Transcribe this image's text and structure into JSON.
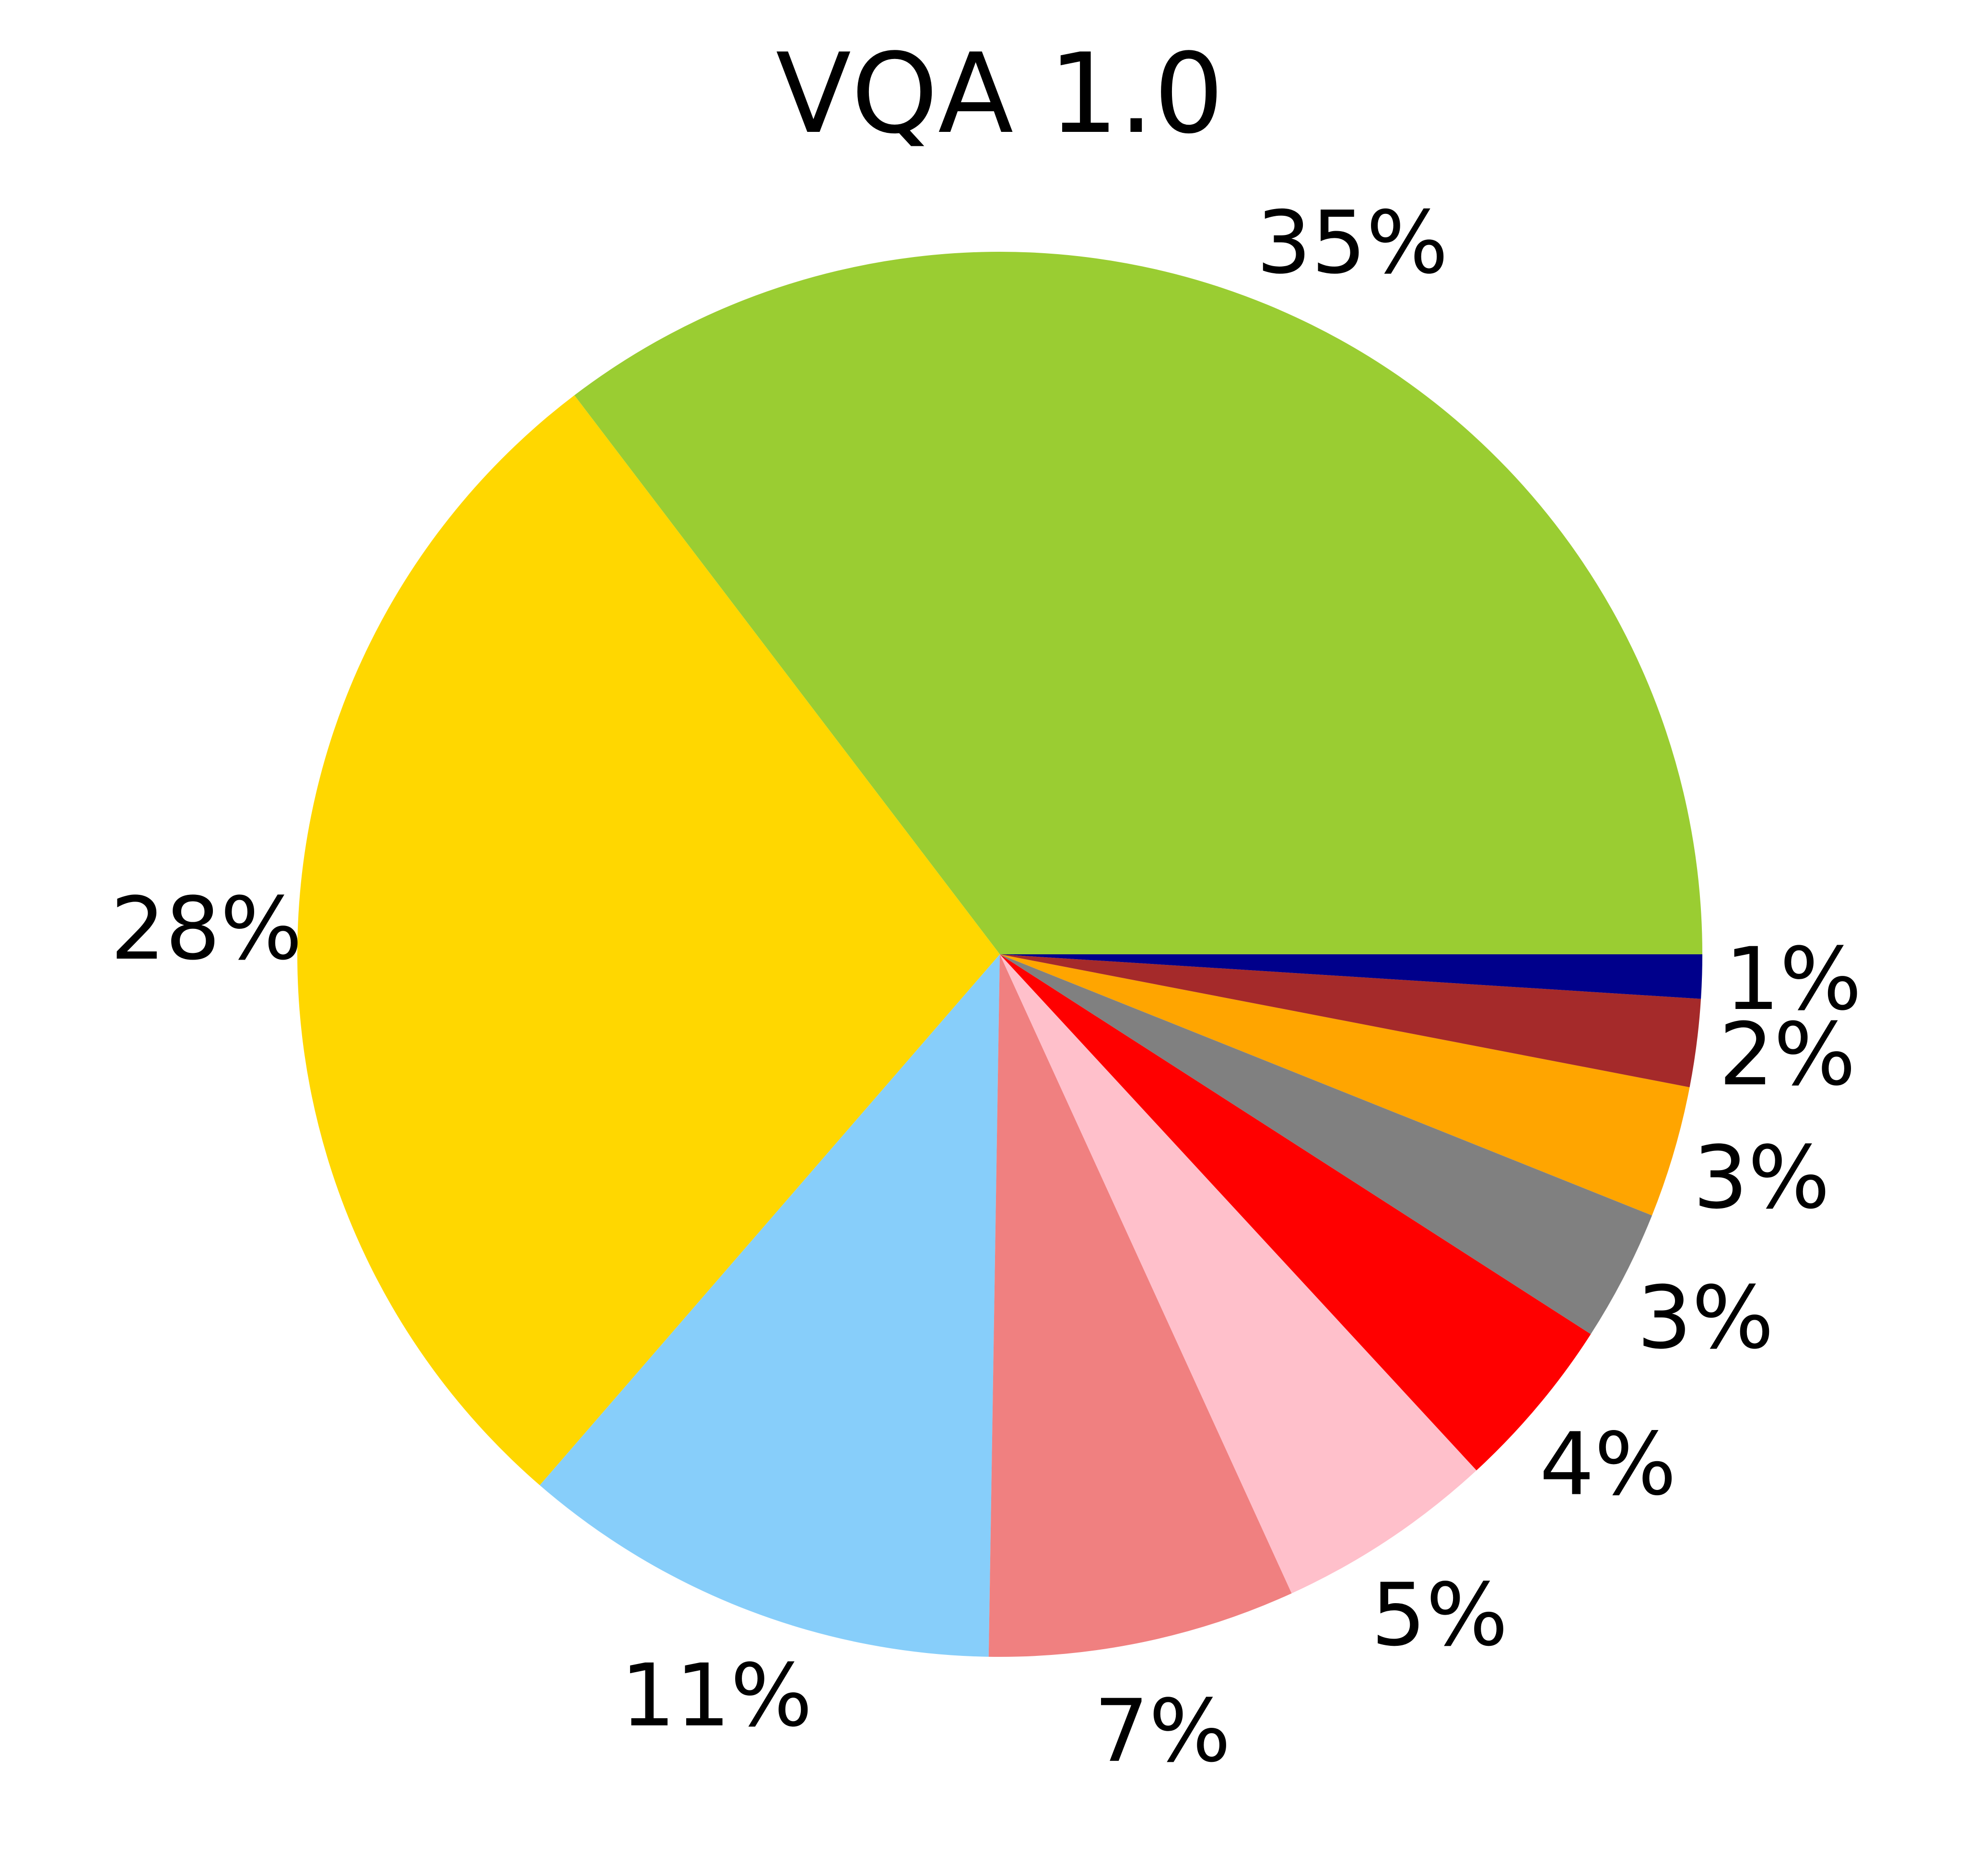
{
  "chart_data": {
    "type": "pie",
    "title": "VQA 1.0",
    "slices": [
      {
        "label": "35%",
        "value": 35,
        "color": "#9ACD32"
      },
      {
        "label": "28%",
        "value": 28,
        "color": "#FFD700"
      },
      {
        "label": "11%",
        "value": 11,
        "color": "#87CEFA"
      },
      {
        "label": "7%",
        "value": 7,
        "color": "#F08080"
      },
      {
        "label": "5%",
        "value": 5,
        "color": "#FFC0CB"
      },
      {
        "label": "4%",
        "value": 4,
        "color": "#FF0000"
      },
      {
        "label": "3%",
        "value": 3,
        "color": "#808080"
      },
      {
        "label": "3%",
        "value": 3,
        "color": "#FFA500"
      },
      {
        "label": "2%",
        "value": 2,
        "color": "#A52A2A"
      },
      {
        "label": "1%",
        "value": 1,
        "color": "#00008B"
      }
    ],
    "start_angle_deg": 0,
    "direction": "counterclockwise",
    "legend": "none",
    "grid": false
  }
}
